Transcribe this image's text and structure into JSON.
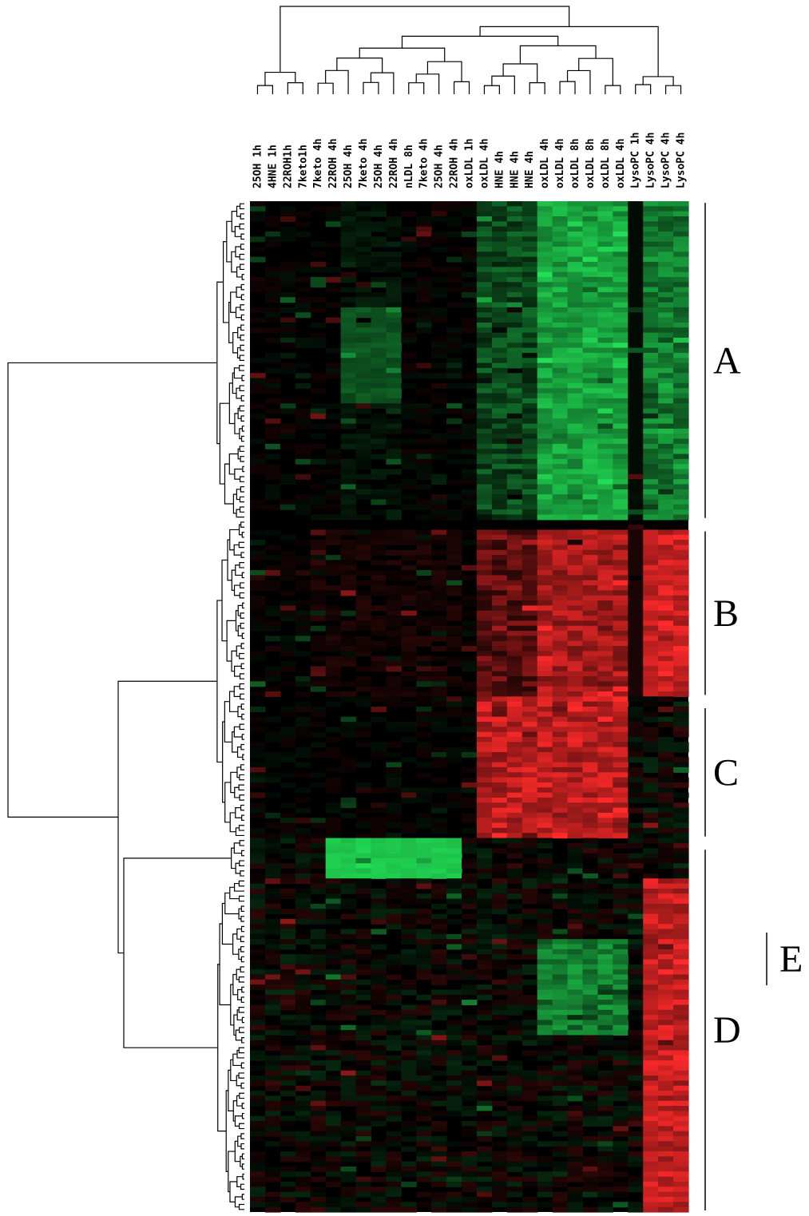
{
  "chart_data": {
    "type": "heatmap",
    "title": "",
    "columns": [
      "25OH 1h",
      "4HNE 1h",
      "22ROH1h",
      "7keto1h",
      "7keto 4h",
      "22ROH 4h",
      "25OH 4h",
      "7keto 4h",
      "25OH 4h",
      "22ROH 4h",
      "nLDL 8h",
      "7keto 4h",
      "25OH 4h",
      "22ROH 4h",
      "oxLDL 1h",
      "oxLDL 4h",
      "HNE 4h",
      "HNE 4h",
      "HNE 4h",
      "oxLDL 4h",
      "oxLDL 4h",
      "oxLDL 8h",
      "oxLDL 8h",
      "oxLDL 8h",
      "oxLDL 4h",
      "LysoPC 1h",
      "LysoPC 4h",
      "LysoPC 4h",
      "LysoPC 4h"
    ],
    "row_count": 200,
    "color_scale": {
      "low": "#22dd55",
      "mid": "#000000",
      "high": "#ff2a2a"
    },
    "clusters": [
      {
        "label": "A",
        "row_start": 0,
        "row_end": 62
      },
      {
        "label": "B",
        "row_start": 65,
        "row_end": 97
      },
      {
        "label": "C",
        "row_start": 100,
        "row_end": 125
      },
      {
        "label": "E",
        "row_start": 126,
        "row_end": 134
      },
      {
        "label": "D",
        "row_start": 128,
        "row_end": 199
      }
    ],
    "grid": false,
    "legend": "none"
  }
}
